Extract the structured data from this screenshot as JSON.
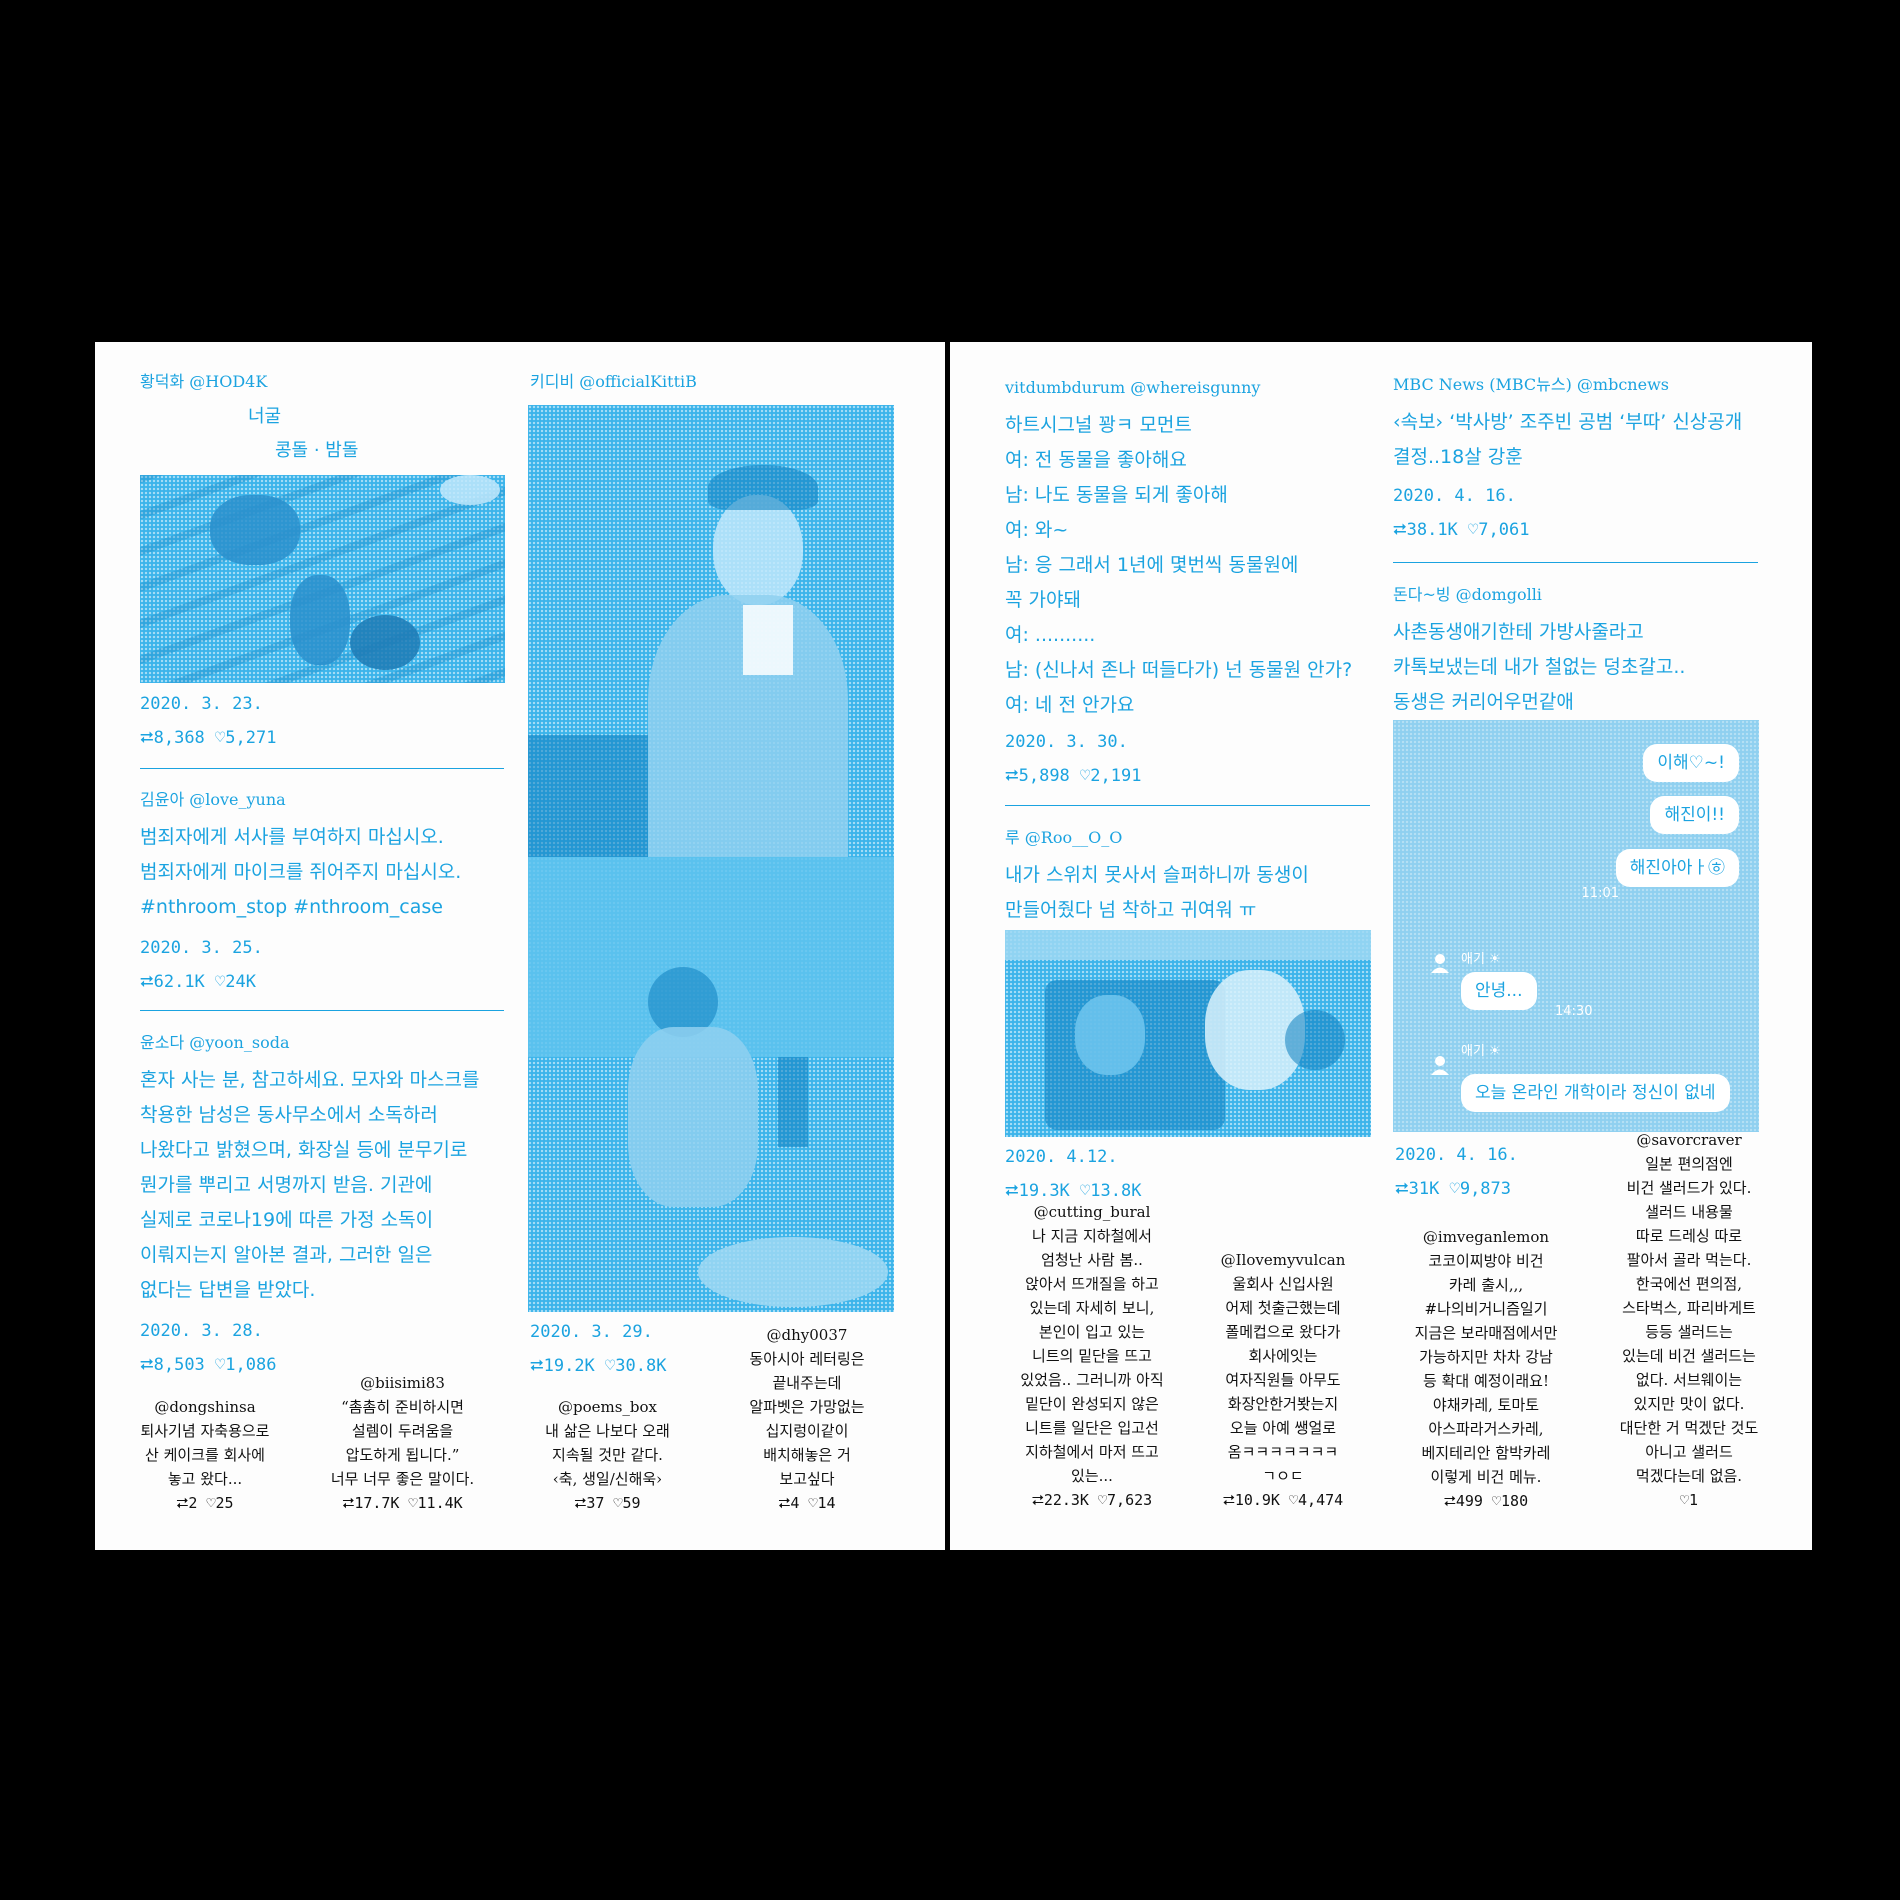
{
  "left_col1": {
    "post1": {
      "handle": "황덕화 @HOD4K",
      "lines": [
        "너굴",
        "콩돌 · 밤돌"
      ],
      "date": "2020. 3. 23.",
      "retweets": "8,368",
      "likes": "5,271"
    },
    "post2": {
      "handle": "김윤아 @love_yuna",
      "lines": [
        "범죄자에게 서사를 부여하지 마십시오.",
        "범죄자에게 마이크를 쥐어주지 마십시오.",
        "#nthroom_stop #nthroom_case"
      ],
      "date": "2020. 3. 25.",
      "retweets": "62.1K",
      "likes": "24K"
    },
    "post3": {
      "handle": "윤소다 @yoon_soda",
      "lines": [
        "혼자 사는 분, 참고하세요. 모자와 마스크를",
        "착용한 남성은 동사무소에서 소독하러",
        "나왔다고 밝혔으며, 화장실 등에 분무기로",
        "뭔가를 뿌리고 서명까지 받음. 기관에",
        "실제로 코로나19에 따른 가정 소독이",
        "이뤄지는지 알아본 결과, 그러한 일은",
        "없다는 답변을 받았다."
      ],
      "date": "2020. 3. 28.",
      "retweets": "8,503",
      "likes": "1,086"
    }
  },
  "left_col2": {
    "post1": {
      "handle": "키디비 @officialKittiB",
      "date": "2020. 3. 29.",
      "retweets": "19.2K",
      "likes": "30.8K"
    }
  },
  "left_small": [
    {
      "handle": "@dongshinsa",
      "lines": [
        "퇴사기념 자축용으로",
        "산 케이크를 회사에",
        "놓고 왔다..."
      ],
      "stats": "⮂2 ♡25"
    },
    {
      "handle": "@biisimi83",
      "lines": [
        "“촘촘히 준비하시면",
        "설렘이 두려움을",
        "압도하게 됩니다.”",
        "너무 너무 좋은 말이다."
      ],
      "stats": "⮂17.7K ♡11.4K"
    },
    {
      "handle": "@poems_box",
      "lines": [
        "내 삶은 나보다 오래",
        "지속될 것만 같다.",
        "‹축, 생일/신해욱›"
      ],
      "stats": "⮂37 ♡59"
    },
    {
      "handle": "@dhy0037",
      "lines": [
        "동아시아 레터링은",
        "끝내주는데",
        "알파벳은 가망없는",
        "십지렁이같이",
        "배치해놓은 거",
        "보고싶다"
      ],
      "stats": "⮂4 ♡14"
    }
  ],
  "right_col1": {
    "post1": {
      "handle": "vitdumbdurum @whereisgunny",
      "lines": [
        "하트시그널 꽝ㅋ 모먼트",
        "여: 전 동물을 좋아해요",
        "남: 나도 동물을 되게 좋아해",
        "여: 와~",
        "남: 응 그래서 1년에 몇번씩 동물원에",
        "꼭 가야돼",
        "여: ..........",
        "남: (신나서 존나 떠들다가) 넌 동물원 안가?",
        "여: 네 전 안가요"
      ],
      "date": "2020. 3. 30.",
      "retweets": "5,898",
      "likes": "2,191"
    },
    "post2": {
      "handle": "루 @Roo__O_O",
      "lines": [
        "내가 스위치 못사서 슬퍼하니까 동생이",
        "만들어줬다 넘 착하고 귀여워 ㅠ"
      ],
      "date": "2020. 4.12.",
      "retweets": "19.3K",
      "likes": "13.8K"
    }
  },
  "right_col2": {
    "post1": {
      "handle": "MBC News (MBC뉴스) @mbcnews",
      "lines": [
        "‹속보› ‘박사방’ 조주빈 공범 ‘부따’ 신상공개",
        "결정..18살 강훈"
      ],
      "date": "2020. 4. 16.",
      "retweets": "38.1K",
      "likes": "7,061"
    },
    "post2": {
      "handle": "돈다~빙 @domgolli",
      "lines": [
        "사촌동생애기한테 가방사줄라고",
        "카톡보냈는데 내가 철없는 덩초갈고..",
        "동생은 커리어우먼같애"
      ],
      "date": "2020. 4. 16.",
      "retweets": "31K",
      "likes": "9,873"
    }
  },
  "chat": {
    "bubbles_right": [
      "이해♡~!",
      "해진이!!",
      "해진아아ㅏ㉭"
    ],
    "time1": "11:01",
    "sender": "애기 ☀",
    "bubble_left1": "안녕...",
    "time2": "14:30",
    "bubble_left2": "오늘 온라인 개학이라 정신이 없네"
  },
  "right_small": [
    {
      "handle": "@cutting_bural",
      "lines": [
        "나 지금 지하철에서",
        "엄청난 사람 봄..",
        "앉아서 뜨개질을 하고",
        "있는데 자세히 보니,",
        "본인이 입고 있는",
        "니트의 밑단을 뜨고",
        "있었음.. 그러니까 아직",
        "밑단이 완성되지 않은",
        "니트를 일단은 입고선",
        "지하철에서 마저 뜨고",
        "있는..."
      ],
      "stats": "⮂22.3K ♡7,623"
    },
    {
      "handle": "@Ilovemyvulcan",
      "lines": [
        "울회사 신입사원",
        "어제 첫출근했는데",
        "폴메컵으로 왔다가",
        "회사에잇는",
        "여자직원들 아무도",
        "화장안한거봣는지",
        "오늘 아예 쌩얼로",
        "옴ㅋㅋㅋㅋㅋㅋㅋ",
        "ㄱㅇㄷ"
      ],
      "stats": "⮂10.9K ♡4,474"
    },
    {
      "handle": "@imveganlemon",
      "lines": [
        "코코이찌방야 비건",
        "카레 출시,,,",
        "#나의비거니즘일기",
        "지금은 보라매점에서만",
        "가능하지만 차차 강남",
        "등 확대 예정이래요!",
        "야채카레, 토마토",
        "아스파라거스카레,",
        "베지테리안 함박카레",
        "이렇게 비건 메뉴."
      ],
      "stats": "⮂499 ♡180"
    },
    {
      "handle": "@savorcraver",
      "lines": [
        "일본 편의점엔",
        "비건 샐러드가 있다.",
        "샐러드 내용물",
        "따로 드레싱 따로",
        "팔아서 골라 먹는다.",
        "한국에선 편의점,",
        "스타벅스, 파리바게트",
        "등등 샐러드는",
        "있는데 비건 샐러드는",
        "없다. 서브웨이는",
        "있지만 맛이 없다.",
        "대단한 거 먹겠단 것도",
        "아니고 샐러드",
        "먹겠다는데 없음."
      ],
      "stats": "♡1"
    }
  ],
  "colors": {
    "accent": "#1ba3e0",
    "background": "#000000",
    "paper": "#fdfdfd"
  }
}
